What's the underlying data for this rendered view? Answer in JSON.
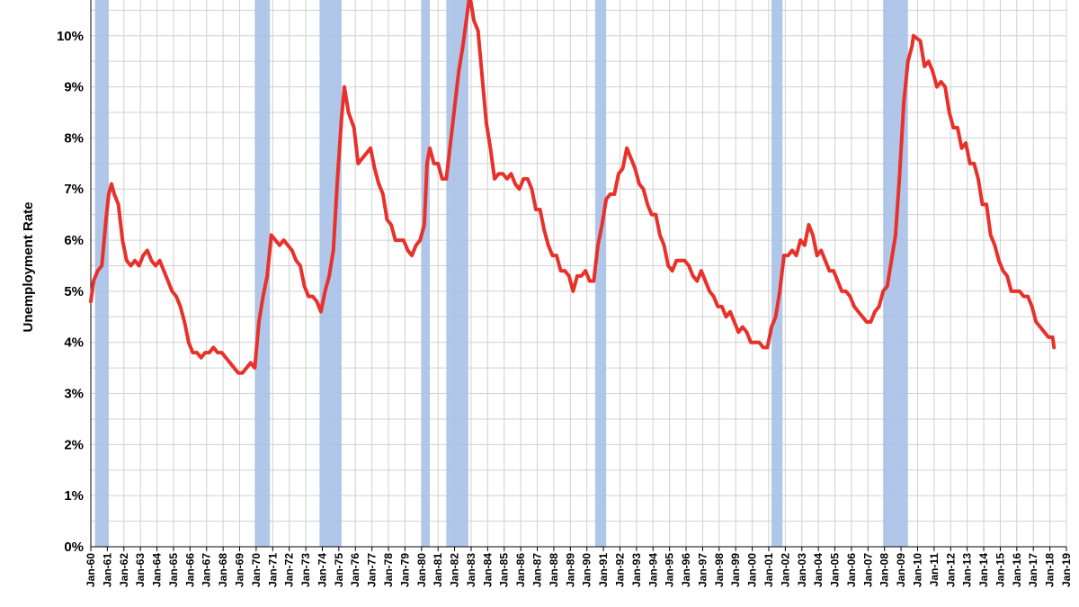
{
  "chart_data": {
    "type": "line",
    "title": "",
    "xlabel": "",
    "ylabel": "Unemployment Rate",
    "ylim": [
      0,
      10.7
    ],
    "xlim": [
      "1960-01",
      "2019-01"
    ],
    "grid": true,
    "y_ticks": [
      "0%",
      "1%",
      "2%",
      "3%",
      "4%",
      "5%",
      "6%",
      "7%",
      "8%",
      "9%",
      "10%"
    ],
    "x_ticks": [
      "Jan-60",
      "Jan-61",
      "Jan-62",
      "Jan-63",
      "Jan-64",
      "Jan-65",
      "Jan-66",
      "Jan-67",
      "Jan-68",
      "Jan-69",
      "Jan-70",
      "Jan-71",
      "Jan-72",
      "Jan-73",
      "Jan-74",
      "Jan-75",
      "Jan-76",
      "Jan-77",
      "Jan-78",
      "Jan-79",
      "Jan-80",
      "Jan-81",
      "Jan-82",
      "Jan-83",
      "Jan-84",
      "Jan-85",
      "Jan-86",
      "Jan-87",
      "Jan-88",
      "Jan-89",
      "Jan-90",
      "Jan-91",
      "Jan-92",
      "Jan-93",
      "Jan-94",
      "Jan-95",
      "Jan-96",
      "Jan-97",
      "Jan-98",
      "Jan-99",
      "Jan-00",
      "Jan-01",
      "Jan-02",
      "Jan-03",
      "Jan-04",
      "Jan-05",
      "Jan-06",
      "Jan-07",
      "Jan-08",
      "Jan-09",
      "Jan-10",
      "Jan-11",
      "Jan-12",
      "Jan-13",
      "Jan-14",
      "Jan-15",
      "Jan-16",
      "Jan-17",
      "Jan-18",
      "Jan-19"
    ],
    "colors": {
      "line": "#e8312a",
      "recession": "#a9c1e8",
      "grid": "#d0d0d0",
      "axis": "#000000"
    },
    "recessions": [
      [
        "1960-04",
        "1961-02"
      ],
      [
        "1969-12",
        "1970-11"
      ],
      [
        "1973-11",
        "1975-03"
      ],
      [
        "1980-01",
        "1980-07"
      ],
      [
        "1981-07",
        "1982-11"
      ],
      [
        "1990-07",
        "1991-03"
      ],
      [
        "2001-03",
        "2001-11"
      ],
      [
        "2007-12",
        "2009-06"
      ]
    ],
    "series": [
      {
        "values": [
          [
            "1960-01",
            4.8
          ],
          [
            "1960-03",
            5.2
          ],
          [
            "1960-06",
            5.4
          ],
          [
            "1960-09",
            5.5
          ],
          [
            "1960-12",
            6.4
          ],
          [
            "1961-02",
            6.9
          ],
          [
            "1961-04",
            7.1
          ],
          [
            "1961-06",
            6.9
          ],
          [
            "1961-09",
            6.7
          ],
          [
            "1961-12",
            6.0
          ],
          [
            "1962-03",
            5.6
          ],
          [
            "1962-06",
            5.5
          ],
          [
            "1962-09",
            5.6
          ],
          [
            "1962-12",
            5.5
          ],
          [
            "1963-03",
            5.7
          ],
          [
            "1963-06",
            5.8
          ],
          [
            "1963-09",
            5.6
          ],
          [
            "1963-12",
            5.5
          ],
          [
            "1964-03",
            5.6
          ],
          [
            "1964-06",
            5.4
          ],
          [
            "1964-09",
            5.2
          ],
          [
            "1964-12",
            5.0
          ],
          [
            "1965-03",
            4.9
          ],
          [
            "1965-06",
            4.7
          ],
          [
            "1965-09",
            4.4
          ],
          [
            "1965-12",
            4.0
          ],
          [
            "1966-03",
            3.8
          ],
          [
            "1966-06",
            3.8
          ],
          [
            "1966-09",
            3.7
          ],
          [
            "1966-12",
            3.8
          ],
          [
            "1967-03",
            3.8
          ],
          [
            "1967-06",
            3.9
          ],
          [
            "1967-09",
            3.8
          ],
          [
            "1967-12",
            3.8
          ],
          [
            "1968-03",
            3.7
          ],
          [
            "1968-06",
            3.6
          ],
          [
            "1968-09",
            3.5
          ],
          [
            "1968-12",
            3.4
          ],
          [
            "1969-03",
            3.4
          ],
          [
            "1969-06",
            3.5
          ],
          [
            "1969-09",
            3.6
          ],
          [
            "1969-12",
            3.5
          ],
          [
            "1970-03",
            4.4
          ],
          [
            "1970-06",
            4.9
          ],
          [
            "1970-09",
            5.3
          ],
          [
            "1970-12",
            6.1
          ],
          [
            "1971-03",
            6.0
          ],
          [
            "1971-06",
            5.9
          ],
          [
            "1971-09",
            6.0
          ],
          [
            "1971-12",
            5.9
          ],
          [
            "1972-03",
            5.8
          ],
          [
            "1972-06",
            5.6
          ],
          [
            "1972-09",
            5.5
          ],
          [
            "1972-12",
            5.1
          ],
          [
            "1973-03",
            4.9
          ],
          [
            "1973-06",
            4.9
          ],
          [
            "1973-09",
            4.8
          ],
          [
            "1973-12",
            4.6
          ],
          [
            "1974-03",
            5.0
          ],
          [
            "1974-06",
            5.3
          ],
          [
            "1974-09",
            5.8
          ],
          [
            "1974-12",
            7.2
          ],
          [
            "1975-03",
            8.4
          ],
          [
            "1975-05",
            9.0
          ],
          [
            "1975-08",
            8.5
          ],
          [
            "1975-12",
            8.2
          ],
          [
            "1976-03",
            7.5
          ],
          [
            "1976-06",
            7.6
          ],
          [
            "1976-09",
            7.7
          ],
          [
            "1976-12",
            7.8
          ],
          [
            "1977-03",
            7.4
          ],
          [
            "1977-06",
            7.1
          ],
          [
            "1977-09",
            6.9
          ],
          [
            "1977-12",
            6.4
          ],
          [
            "1978-03",
            6.3
          ],
          [
            "1978-06",
            6.0
          ],
          [
            "1978-09",
            6.0
          ],
          [
            "1978-12",
            6.0
          ],
          [
            "1979-03",
            5.8
          ],
          [
            "1979-06",
            5.7
          ],
          [
            "1979-09",
            5.9
          ],
          [
            "1979-12",
            6.0
          ],
          [
            "1980-03",
            6.3
          ],
          [
            "1980-05",
            7.5
          ],
          [
            "1980-07",
            7.8
          ],
          [
            "1980-10",
            7.5
          ],
          [
            "1981-01",
            7.5
          ],
          [
            "1981-04",
            7.2
          ],
          [
            "1981-07",
            7.2
          ],
          [
            "1981-10",
            7.9
          ],
          [
            "1982-01",
            8.6
          ],
          [
            "1982-04",
            9.3
          ],
          [
            "1982-07",
            9.8
          ],
          [
            "1982-10",
            10.4
          ],
          [
            "1982-12",
            10.8
          ],
          [
            "1983-03",
            10.3
          ],
          [
            "1983-06",
            10.1
          ],
          [
            "1983-09",
            9.2
          ],
          [
            "1983-12",
            8.3
          ],
          [
            "1984-03",
            7.8
          ],
          [
            "1984-06",
            7.2
          ],
          [
            "1984-09",
            7.3
          ],
          [
            "1984-12",
            7.3
          ],
          [
            "1985-03",
            7.2
          ],
          [
            "1985-06",
            7.3
          ],
          [
            "1985-09",
            7.1
          ],
          [
            "1985-12",
            7.0
          ],
          [
            "1986-03",
            7.2
          ],
          [
            "1986-06",
            7.2
          ],
          [
            "1986-09",
            7.0
          ],
          [
            "1986-12",
            6.6
          ],
          [
            "1987-03",
            6.6
          ],
          [
            "1987-06",
            6.2
          ],
          [
            "1987-09",
            5.9
          ],
          [
            "1987-12",
            5.7
          ],
          [
            "1988-03",
            5.7
          ],
          [
            "1988-06",
            5.4
          ],
          [
            "1988-09",
            5.4
          ],
          [
            "1988-12",
            5.3
          ],
          [
            "1989-03",
            5.0
          ],
          [
            "1989-06",
            5.3
          ],
          [
            "1989-09",
            5.3
          ],
          [
            "1989-12",
            5.4
          ],
          [
            "1990-03",
            5.2
          ],
          [
            "1990-06",
            5.2
          ],
          [
            "1990-09",
            5.9
          ],
          [
            "1990-12",
            6.3
          ],
          [
            "1991-03",
            6.8
          ],
          [
            "1991-06",
            6.9
          ],
          [
            "1991-09",
            6.9
          ],
          [
            "1991-12",
            7.3
          ],
          [
            "1992-03",
            7.4
          ],
          [
            "1992-06",
            7.8
          ],
          [
            "1992-09",
            7.6
          ],
          [
            "1992-12",
            7.4
          ],
          [
            "1993-03",
            7.1
          ],
          [
            "1993-06",
            7.0
          ],
          [
            "1993-09",
            6.7
          ],
          [
            "1993-12",
            6.5
          ],
          [
            "1994-03",
            6.5
          ],
          [
            "1994-06",
            6.1
          ],
          [
            "1994-09",
            5.9
          ],
          [
            "1994-12",
            5.5
          ],
          [
            "1995-03",
            5.4
          ],
          [
            "1995-06",
            5.6
          ],
          [
            "1995-09",
            5.6
          ],
          [
            "1995-12",
            5.6
          ],
          [
            "1996-03",
            5.5
          ],
          [
            "1996-06",
            5.3
          ],
          [
            "1996-09",
            5.2
          ],
          [
            "1996-12",
            5.4
          ],
          [
            "1997-03",
            5.2
          ],
          [
            "1997-06",
            5.0
          ],
          [
            "1997-09",
            4.9
          ],
          [
            "1997-12",
            4.7
          ],
          [
            "1998-03",
            4.7
          ],
          [
            "1998-06",
            4.5
          ],
          [
            "1998-09",
            4.6
          ],
          [
            "1998-12",
            4.4
          ],
          [
            "1999-03",
            4.2
          ],
          [
            "1999-06",
            4.3
          ],
          [
            "1999-09",
            4.2
          ],
          [
            "1999-12",
            4.0
          ],
          [
            "2000-03",
            4.0
          ],
          [
            "2000-06",
            4.0
          ],
          [
            "2000-09",
            3.9
          ],
          [
            "2000-12",
            3.9
          ],
          [
            "2001-03",
            4.3
          ],
          [
            "2001-06",
            4.5
          ],
          [
            "2001-09",
            5.0
          ],
          [
            "2001-12",
            5.7
          ],
          [
            "2002-03",
            5.7
          ],
          [
            "2002-06",
            5.8
          ],
          [
            "2002-09",
            5.7
          ],
          [
            "2002-12",
            6.0
          ],
          [
            "2003-03",
            5.9
          ],
          [
            "2003-06",
            6.3
          ],
          [
            "2003-09",
            6.1
          ],
          [
            "2003-12",
            5.7
          ],
          [
            "2004-03",
            5.8
          ],
          [
            "2004-06",
            5.6
          ],
          [
            "2004-09",
            5.4
          ],
          [
            "2004-12",
            5.4
          ],
          [
            "2005-03",
            5.2
          ],
          [
            "2005-06",
            5.0
          ],
          [
            "2005-09",
            5.0
          ],
          [
            "2005-12",
            4.9
          ],
          [
            "2006-03",
            4.7
          ],
          [
            "2006-06",
            4.6
          ],
          [
            "2006-09",
            4.5
          ],
          [
            "2006-12",
            4.4
          ],
          [
            "2007-03",
            4.4
          ],
          [
            "2007-06",
            4.6
          ],
          [
            "2007-09",
            4.7
          ],
          [
            "2007-12",
            5.0
          ],
          [
            "2008-03",
            5.1
          ],
          [
            "2008-06",
            5.6
          ],
          [
            "2008-09",
            6.1
          ],
          [
            "2008-12",
            7.3
          ],
          [
            "2009-03",
            8.7
          ],
          [
            "2009-06",
            9.5
          ],
          [
            "2009-09",
            9.8
          ],
          [
            "2009-10",
            10.0
          ],
          [
            "2010-03",
            9.9
          ],
          [
            "2010-06",
            9.4
          ],
          [
            "2010-09",
            9.5
          ],
          [
            "2010-12",
            9.3
          ],
          [
            "2011-03",
            9.0
          ],
          [
            "2011-06",
            9.1
          ],
          [
            "2011-09",
            9.0
          ],
          [
            "2011-12",
            8.5
          ],
          [
            "2012-03",
            8.2
          ],
          [
            "2012-06",
            8.2
          ],
          [
            "2012-09",
            7.8
          ],
          [
            "2012-12",
            7.9
          ],
          [
            "2013-03",
            7.5
          ],
          [
            "2013-06",
            7.5
          ],
          [
            "2013-09",
            7.2
          ],
          [
            "2013-12",
            6.7
          ],
          [
            "2014-03",
            6.7
          ],
          [
            "2014-06",
            6.1
          ],
          [
            "2014-09",
            5.9
          ],
          [
            "2014-12",
            5.6
          ],
          [
            "2015-03",
            5.4
          ],
          [
            "2015-06",
            5.3
          ],
          [
            "2015-09",
            5.0
          ],
          [
            "2015-12",
            5.0
          ],
          [
            "2016-03",
            5.0
          ],
          [
            "2016-06",
            4.9
          ],
          [
            "2016-09",
            4.9
          ],
          [
            "2016-12",
            4.7
          ],
          [
            "2017-03",
            4.4
          ],
          [
            "2017-06",
            4.3
          ],
          [
            "2017-09",
            4.2
          ],
          [
            "2017-12",
            4.1
          ],
          [
            "2018-03",
            4.1
          ],
          [
            "2018-04",
            3.9
          ]
        ]
      }
    ]
  }
}
